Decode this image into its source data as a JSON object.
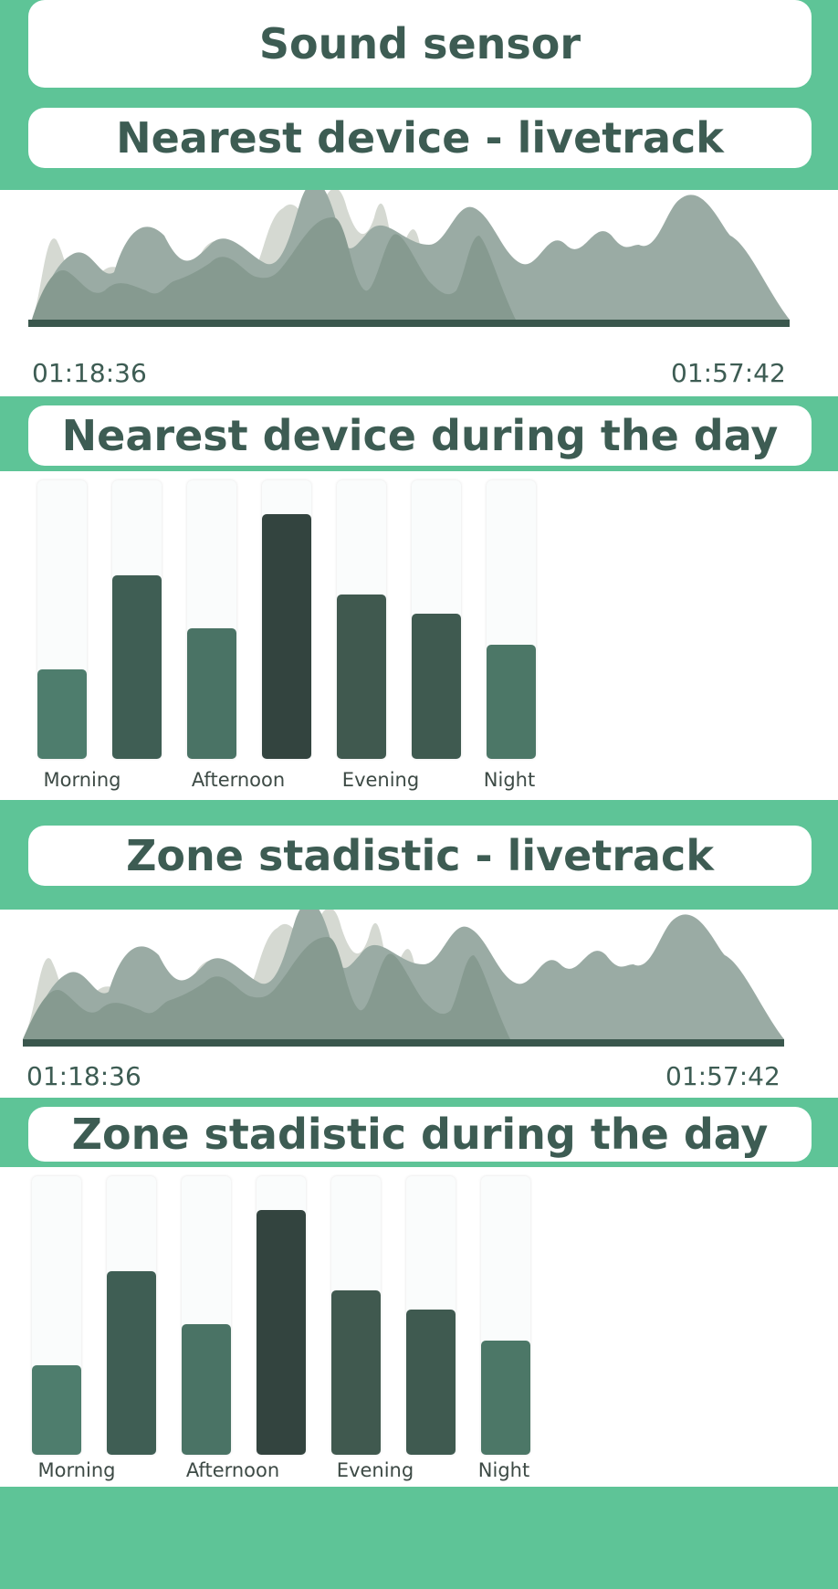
{
  "header": {
    "title": "Sound sensor"
  },
  "sections": [
    {
      "title": "Nearest device - livetrack",
      "time_start": "01:18:36",
      "time_end": "01:57:42"
    },
    {
      "title": "Nearest device during the day",
      "labels": [
        "Morning",
        "Afternoon",
        "Evening",
        "Night"
      ]
    },
    {
      "title": "Zone stadistic - livetrack",
      "time_start": "01:18:36",
      "time_end": "01:57:42"
    },
    {
      "title": "Zone stadistic during the day",
      "labels": [
        "Morning",
        "Afternoon",
        "Evening",
        "Night"
      ]
    }
  ],
  "chart_data": [
    {
      "type": "bar",
      "values": [
        0.32,
        0.66,
        0.47,
        0.88,
        0.59,
        0.52,
        0.41
      ],
      "colors": [
        "#4e7d6d",
        "#3f5e54",
        "#4a7365",
        "#33443f",
        "#40594f",
        "#3f5a50",
        "#4c7767"
      ]
    },
    {
      "type": "bar",
      "values": [
        0.32,
        0.66,
        0.47,
        0.88,
        0.59,
        0.52,
        0.41
      ],
      "colors": [
        "#4e7d6d",
        "#3f5e54",
        "#4a7365",
        "#33443f",
        "#40594f",
        "#3f5a50",
        "#4c7767"
      ]
    }
  ]
}
